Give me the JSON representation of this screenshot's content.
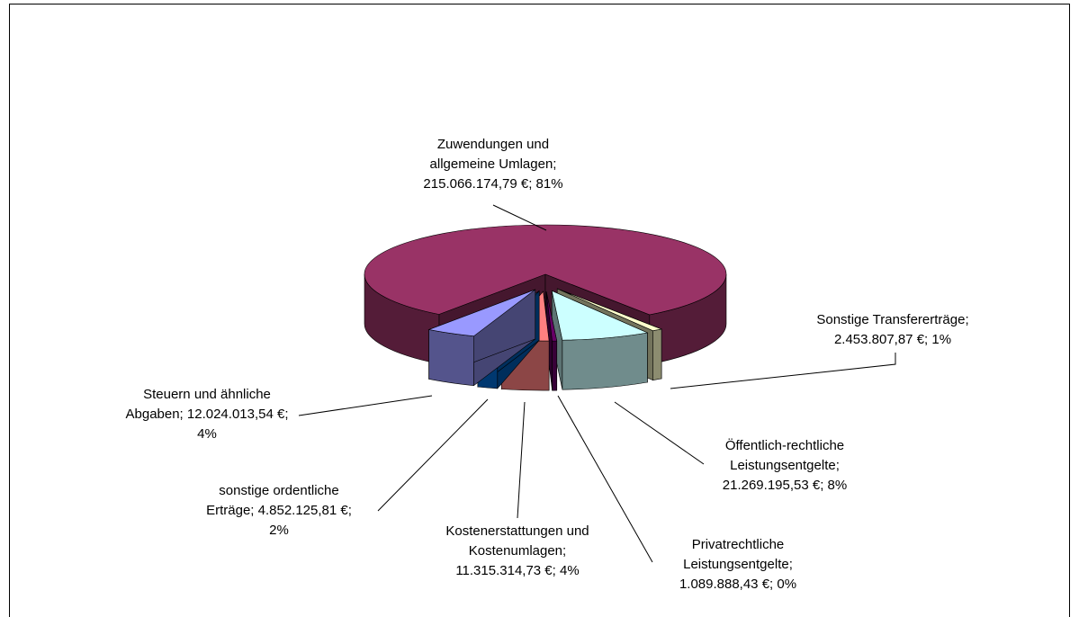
{
  "chart_data": {
    "type": "pie3d",
    "values": [
      215066174.79,
      2453807.87,
      21269195.53,
      1089888.43,
      11315314.73,
      4852125.81,
      12024013.54
    ],
    "value_labels": [
      "Zuwendungen und\nallgemeine Umlagen;\n215.066.174,79 €; 81%",
      "Sonstige Transfererträge;\n2.453.807,87 €; 1%",
      "Öffentlich-rechtliche\nLeistungsentgelte;\n21.269.195,53 €; 8%",
      "Privatrechtliche\nLeistungsentgelte;\n1.089.888,43 €; 0%",
      "Kostenerstattungen und\nKostenumlagen;\n11.315.314,73 €; 4%",
      "sonstige ordentliche\nErträge; 4.852.125,81 €;\n2%",
      "Steuern und ähnliche\nAbgaben; 12.024.013,54 €;\n4%"
    ],
    "colors": [
      "#993366",
      "#ffffcc",
      "#ccffff",
      "#660066",
      "#ff8080",
      "#0066cc",
      "#9999ff"
    ]
  }
}
